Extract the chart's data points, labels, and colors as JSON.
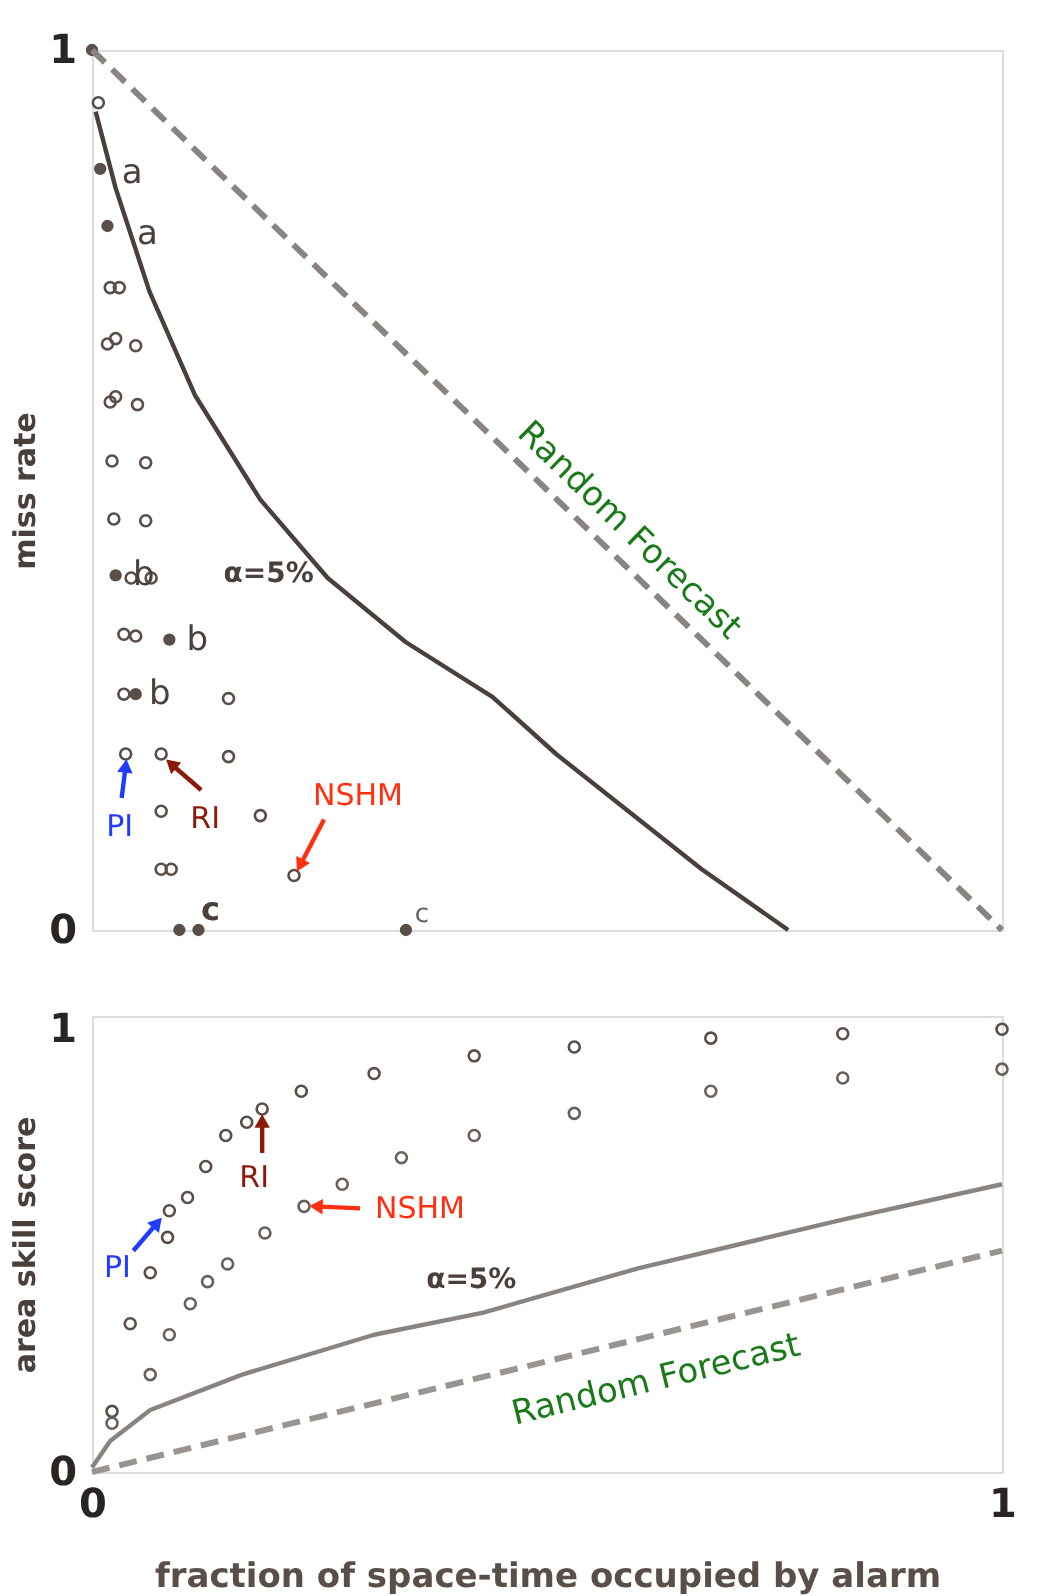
{
  "chart_data": [
    {
      "type": "scatter",
      "ylabel": "miss rate",
      "xlim": [
        0,
        1
      ],
      "ylim": [
        0,
        1
      ],
      "yticks": [
        0,
        1
      ],
      "tick_labels": "y",
      "grid": false,
      "series": [
        {
          "color": "#5a4e48",
          "marker": "circle",
          "x": [
            0.007,
            0.02,
            0.03,
            0.017,
            0.026,
            0.048,
            0.026,
            0.05,
            0.02,
            0.022,
            0.059,
            0.024,
            0.059,
            0.043,
            0.065,
            0.035,
            0.048,
            0.035,
            0.15,
            0.037,
            0.076,
            0.15,
            0.076,
            0.185,
            0.076,
            0.087,
            0.222
          ],
          "values": [
            0.94,
            0.73,
            0.73,
            0.666,
            0.672,
            0.664,
            0.606,
            0.597,
            0.6,
            0.533,
            0.531,
            0.467,
            0.465,
            0.4,
            0.4,
            0.336,
            0.334,
            0.268,
            0.263,
            0.2,
            0.2,
            0.197,
            0.135,
            0.13,
            0.069,
            0.069,
            0.062
          ]
        },
        {
          "color": "#5a4e48",
          "marker": "circle",
          "x": [
            0,
            0.009,
            0.017,
            0.026,
            0.085,
            0.048,
            0.096,
            0.117,
            0.345
          ],
          "values": [
            1,
            0.865,
            0.8,
            0.403,
            0.33,
            0.268,
            0,
            0,
            0
          ]
        },
        {
          "type": "line",
          "color": "#4a403b",
          "line_style": "solid",
          "x": [
            0.004,
            0.026,
            0.063,
            0.113,
            0.185,
            0.259,
            0.345,
            0.44,
            0.51,
            0.67,
            0.765
          ],
          "values": [
            0.93,
            0.843,
            0.726,
            0.608,
            0.489,
            0.4,
            0.327,
            0.265,
            0.2,
            0.069,
            0
          ]
        },
        {
          "type": "line",
          "color": "#8a8480",
          "line_style": "dashed",
          "x": [
            0,
            1
          ],
          "values": [
            1,
            0
          ]
        }
      ],
      "annotations": [
        {
          "text": "a",
          "x": 0.009,
          "y": 0.865
        },
        {
          "text": "a",
          "x": 0.017,
          "y": 0.8
        },
        {
          "text": "b",
          "x": 0.026,
          "y": 0.403
        },
        {
          "text": "b",
          "x": 0.085,
          "y": 0.33
        },
        {
          "text": "b",
          "x": 0.048,
          "y": 0.268
        },
        {
          "text": "c",
          "x": 0.117,
          "y": 0
        },
        {
          "text": "c",
          "x": 0.345,
          "y": 0
        },
        {
          "text": "PI",
          "x": 0.037,
          "y": 0.2
        },
        {
          "text": "RI",
          "x": 0.076,
          "y": 0.2
        },
        {
          "text": "NSHM",
          "x": 0.222,
          "y": 0.062
        },
        {
          "text": "α=5%",
          "x": 0.26,
          "y": 0.4
        },
        {
          "text": "Random Forecast",
          "x": 0.55,
          "y": 0.45
        }
      ]
    },
    {
      "type": "scatter",
      "xlabel": "fraction of space-time occupied by alarm",
      "ylabel": "area skill score",
      "xlim": [
        0,
        1
      ],
      "xticks": [
        0,
        1
      ],
      "ylim": [
        0,
        1.03
      ],
      "yticks": [
        0,
        1
      ],
      "grid": false,
      "series": [
        {
          "color": "#5a4e48",
          "marker": "circle",
          "x": [
            0.022,
            0.042,
            0.064,
            0.083,
            0.085,
            0.105,
            0.125,
            0.147,
            0.17,
            0.187,
            0.23,
            0.31,
            0.42,
            0.53,
            0.68,
            0.825,
            1.0
          ],
          "values": [
            0.137,
            0.335,
            0.45,
            0.53,
            0.59,
            0.62,
            0.69,
            0.76,
            0.79,
            0.82,
            0.86,
            0.9,
            0.94,
            0.96,
            0.98,
            0.99,
            1.0
          ]
        },
        {
          "color": "#6a605a",
          "marker": "circle",
          "x": [
            0.022,
            0.064,
            0.085,
            0.108,
            0.127,
            0.149,
            0.19,
            0.233,
            0.275,
            0.34,
            0.42,
            0.53,
            0.68,
            0.825,
            1.0
          ],
          "values": [
            0.11,
            0.22,
            0.31,
            0.38,
            0.43,
            0.47,
            0.54,
            0.6,
            0.65,
            0.71,
            0.76,
            0.81,
            0.86,
            0.89,
            0.91
          ]
        },
        {
          "type": "line",
          "color": "#8a8480",
          "line_style": "solid",
          "x": [
            0,
            0.02,
            0.064,
            0.165,
            0.31,
            0.43,
            0.6,
            0.825,
            1.0
          ],
          "values": [
            0.01,
            0.07,
            0.14,
            0.22,
            0.31,
            0.36,
            0.46,
            0.57,
            0.65
          ]
        },
        {
          "type": "line",
          "color": "#9a9490",
          "line_style": "dashed",
          "x": [
            0,
            1
          ],
          "values": [
            0,
            0.5
          ]
        }
      ],
      "annotations": [
        {
          "text": "PI",
          "x": 0.085,
          "y": 0.59
        },
        {
          "text": "RI",
          "x": 0.187,
          "y": 0.82
        },
        {
          "text": "NSHM",
          "x": 0.233,
          "y": 0.6
        },
        {
          "text": "α=5%",
          "x": 0.43,
          "y": 0.37
        },
        {
          "text": "Random Forecast",
          "x": 0.6,
          "y": 0.3
        }
      ]
    }
  ]
}
